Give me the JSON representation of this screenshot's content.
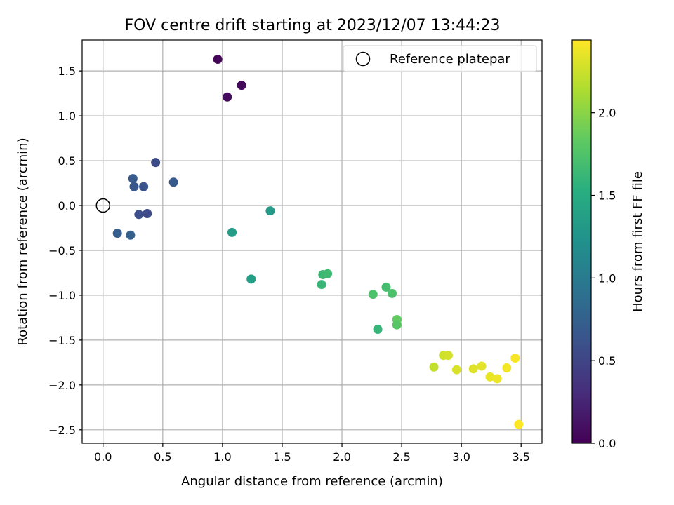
{
  "chart_data": {
    "type": "scatter",
    "title": "FOV centre drift starting at 2023/12/07 13:44:23",
    "xlabel": "Angular distance from reference (arcmin)",
    "ylabel": "Rotation from reference (arcmin)",
    "xlim": [
      -0.175,
      3.675
    ],
    "ylim": [
      -2.65,
      1.845
    ],
    "xticks": [
      0.0,
      0.5,
      1.0,
      1.5,
      2.0,
      2.5,
      3.0,
      3.5
    ],
    "xtick_labels": [
      "0.0",
      "0.5",
      "1.0",
      "1.5",
      "2.0",
      "2.5",
      "3.0",
      "3.5"
    ],
    "yticks": [
      1.5,
      1.0,
      0.5,
      0.0,
      -0.5,
      -1.0,
      -1.5,
      -2.0,
      -2.5
    ],
    "ytick_labels": [
      "1.5",
      "1.0",
      "0.5",
      "0.0",
      "−0.5",
      "−1.0",
      "−1.5",
      "−2.0",
      "−2.5"
    ],
    "grid": true,
    "legend": {
      "position": "top-right",
      "entries": [
        {
          "label": "Reference platepar",
          "marker": "open-circle"
        }
      ]
    },
    "reference_point": {
      "x": 0.0,
      "y": 0.0
    },
    "colorbar": {
      "label": "Hours from first FF file",
      "range": [
        0.0,
        2.44
      ],
      "ticks": [
        0.0,
        0.5,
        1.0,
        1.5,
        2.0
      ],
      "tick_labels": [
        "0.0",
        "0.5",
        "1.0",
        "1.5",
        "2.0"
      ],
      "colormap": "viridis"
    },
    "points": [
      {
        "x": 0.96,
        "y": 1.63,
        "c": 0.02
      },
      {
        "x": 1.16,
        "y": 1.34,
        "c": 0.05
      },
      {
        "x": 1.04,
        "y": 1.21,
        "c": 0.07
      },
      {
        "x": 0.44,
        "y": 0.48,
        "c": 0.55
      },
      {
        "x": 0.25,
        "y": 0.3,
        "c": 0.7
      },
      {
        "x": 0.59,
        "y": 0.26,
        "c": 0.68
      },
      {
        "x": 0.26,
        "y": 0.21,
        "c": 0.66
      },
      {
        "x": 0.34,
        "y": 0.21,
        "c": 0.62
      },
      {
        "x": 0.3,
        "y": -0.1,
        "c": 0.58
      },
      {
        "x": 0.37,
        "y": -0.09,
        "c": 0.55
      },
      {
        "x": 0.12,
        "y": -0.31,
        "c": 0.72
      },
      {
        "x": 0.23,
        "y": -0.33,
        "c": 0.74
      },
      {
        "x": 1.4,
        "y": -0.06,
        "c": 1.32
      },
      {
        "x": 1.08,
        "y": -0.3,
        "c": 1.34
      },
      {
        "x": 1.24,
        "y": -0.82,
        "c": 1.36
      },
      {
        "x": 1.83,
        "y": -0.88,
        "c": 1.62
      },
      {
        "x": 1.84,
        "y": -0.77,
        "c": 1.64
      },
      {
        "x": 1.88,
        "y": -0.76,
        "c": 1.66
      },
      {
        "x": 2.26,
        "y": -0.99,
        "c": 1.74
      },
      {
        "x": 2.37,
        "y": -0.91,
        "c": 1.7
      },
      {
        "x": 2.42,
        "y": -0.98,
        "c": 1.73
      },
      {
        "x": 2.3,
        "y": -1.38,
        "c": 1.6
      },
      {
        "x": 2.46,
        "y": -1.27,
        "c": 1.84
      },
      {
        "x": 2.46,
        "y": -1.33,
        "c": 1.8
      },
      {
        "x": 2.77,
        "y": -1.8,
        "c": 2.22
      },
      {
        "x": 2.85,
        "y": -1.67,
        "c": 2.26
      },
      {
        "x": 2.89,
        "y": -1.67,
        "c": 2.28
      },
      {
        "x": 2.96,
        "y": -1.83,
        "c": 2.3
      },
      {
        "x": 3.1,
        "y": -1.82,
        "c": 2.32
      },
      {
        "x": 3.17,
        "y": -1.79,
        "c": 2.34
      },
      {
        "x": 3.24,
        "y": -1.91,
        "c": 2.36
      },
      {
        "x": 3.3,
        "y": -1.93,
        "c": 2.38
      },
      {
        "x": 3.38,
        "y": -1.81,
        "c": 2.4
      },
      {
        "x": 3.45,
        "y": -1.7,
        "c": 2.42
      },
      {
        "x": 3.48,
        "y": -2.44,
        "c": 2.44
      }
    ]
  }
}
